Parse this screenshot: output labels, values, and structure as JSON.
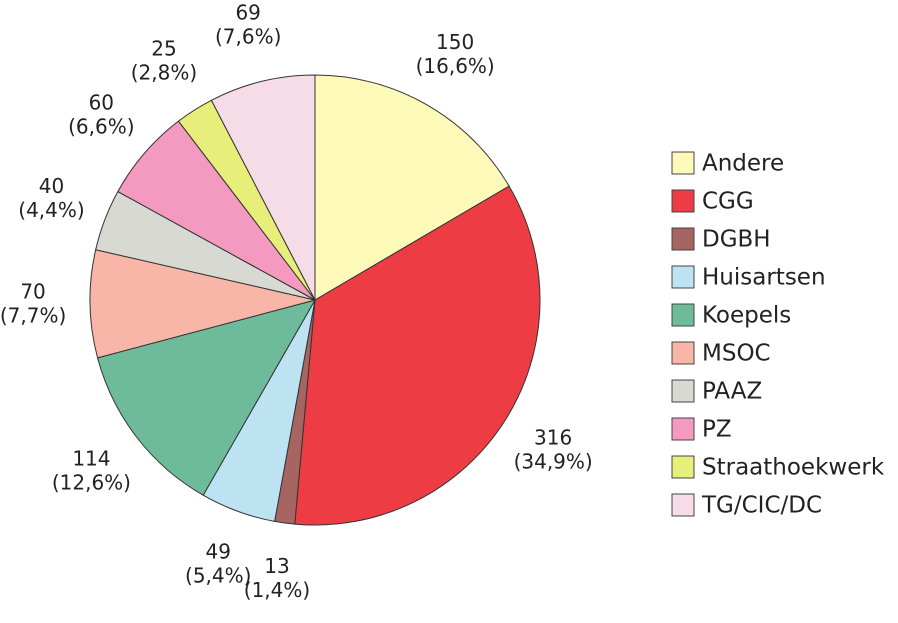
{
  "chart_data": {
    "type": "pie",
    "categories": [
      "Andere",
      "CGG",
      "DGBH",
      "Huisartsen",
      "Koepels",
      "MSOC",
      "PAAZ",
      "PZ",
      "Straathoekwerk",
      "TG/CIC/DC"
    ],
    "values": [
      150,
      316,
      13,
      49,
      114,
      70,
      40,
      60,
      25,
      69
    ],
    "percent_labels": [
      "(16,6%)",
      "(34,9%)",
      "(1,4%)",
      "(5,4%)",
      "(12,6%)",
      "(7,7%)",
      "(4,4%)",
      "(6,6%)",
      "(2,8%)",
      "(7,6%)"
    ],
    "colors": [
      "#fdf9b8",
      "#ee3c44",
      "#a66560",
      "#bde3f3",
      "#6dbb9a",
      "#f8b6a9",
      "#d9d9d4",
      "#f49ac1",
      "#e8ee7a",
      "#f5dce6"
    ],
    "legend": "right"
  }
}
